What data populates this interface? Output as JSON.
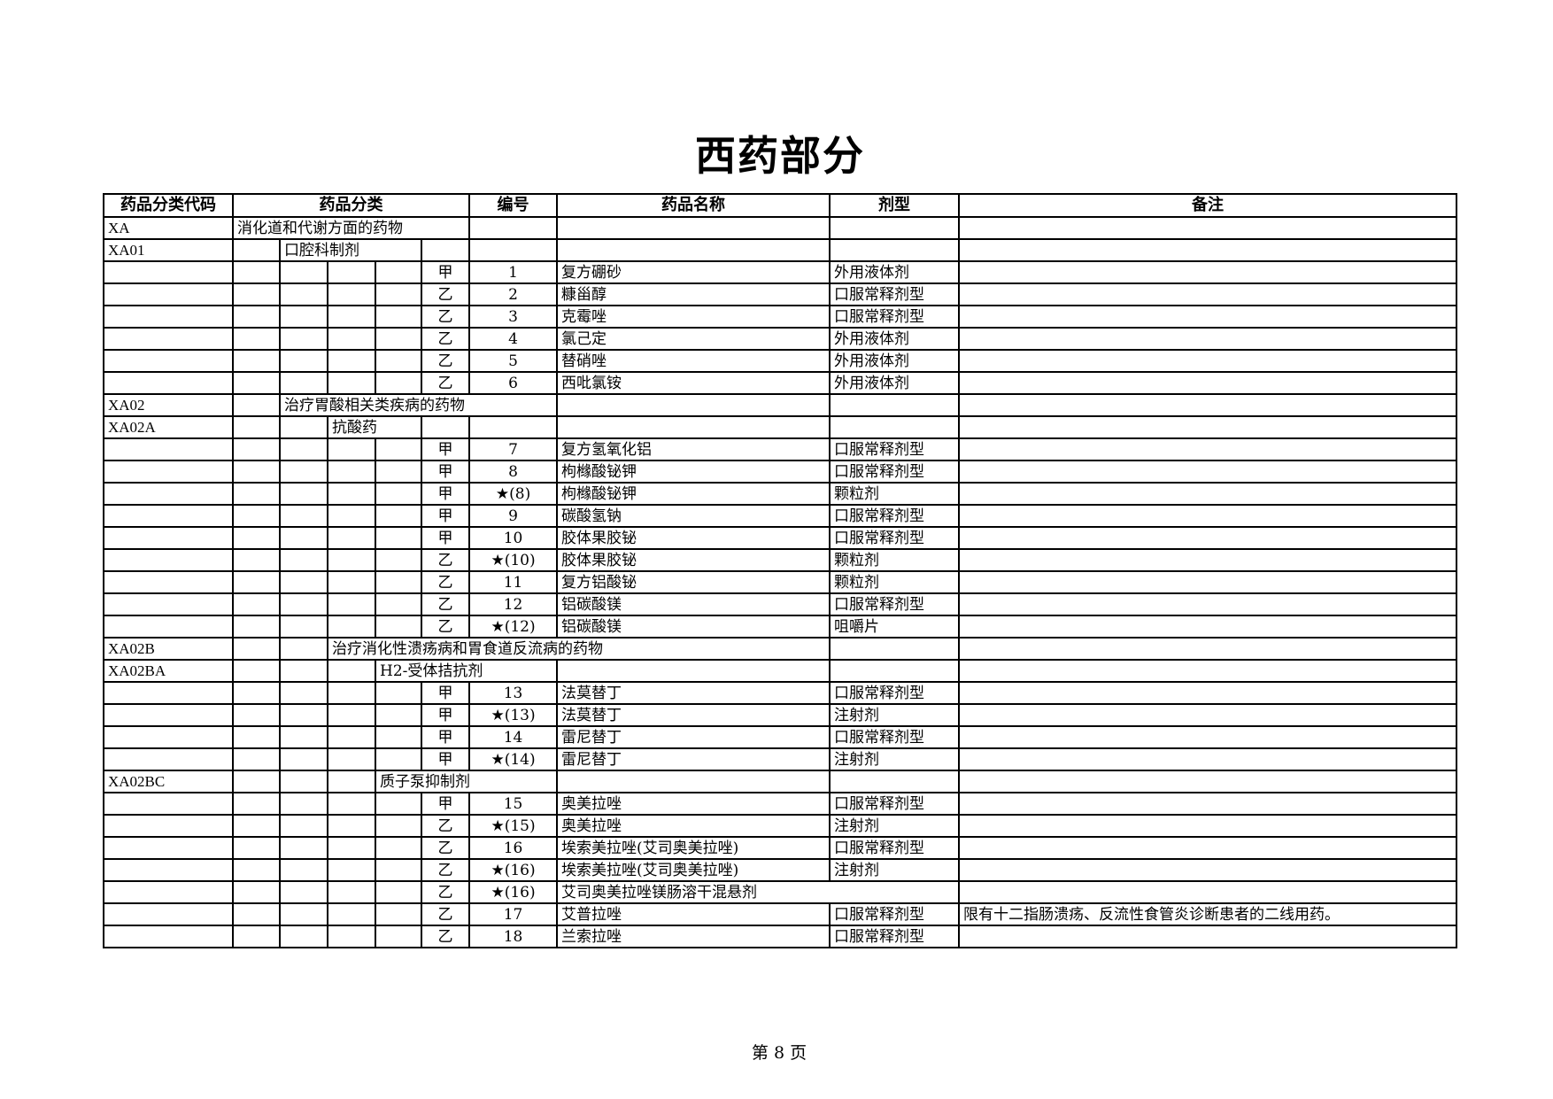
{
  "page_title": "西药部分",
  "headers": [
    "药品分类代码",
    "药品分类",
    "编号",
    "药品名称",
    "剂型",
    "备注"
  ],
  "rows": [
    {
      "type": "category",
      "code": "XA",
      "label": "消化道和代谢方面的药物"
    },
    {
      "type": "category",
      "code": "XA01",
      "label": "口腔科制剂"
    },
    {
      "type": "drug",
      "grade": "甲",
      "no": "1",
      "name": "复方硼砂",
      "form": "外用液体剂",
      "note": ""
    },
    {
      "type": "drug",
      "grade": "乙",
      "no": "2",
      "name": "糠甾醇",
      "form": "口服常释剂型",
      "note": ""
    },
    {
      "type": "drug",
      "grade": "乙",
      "no": "3",
      "name": "克霉唑",
      "form": "口服常释剂型",
      "note": ""
    },
    {
      "type": "drug",
      "grade": "乙",
      "no": "4",
      "name": "氯己定",
      "form": "外用液体剂",
      "note": ""
    },
    {
      "type": "drug",
      "grade": "乙",
      "no": "5",
      "name": "替硝唑",
      "form": "外用液体剂",
      "note": ""
    },
    {
      "type": "drug",
      "grade": "乙",
      "no": "6",
      "name": "西吡氯铵",
      "form": "外用液体剂",
      "note": ""
    },
    {
      "type": "category",
      "code": "XA02",
      "label": "治疗胃酸相关类疾病的药物"
    },
    {
      "type": "category",
      "code": "XA02A",
      "label": "抗酸药"
    },
    {
      "type": "drug",
      "grade": "甲",
      "no": "7",
      "name": "复方氢氧化铝",
      "form": "口服常释剂型",
      "note": ""
    },
    {
      "type": "drug",
      "grade": "甲",
      "no": "8",
      "name": "枸橼酸铋钾",
      "form": "口服常释剂型",
      "note": ""
    },
    {
      "type": "drug",
      "grade": "甲",
      "no": "★(8)",
      "name": "枸橼酸铋钾",
      "form": "颗粒剂",
      "note": ""
    },
    {
      "type": "drug",
      "grade": "甲",
      "no": "9",
      "name": "碳酸氢钠",
      "form": "口服常释剂型",
      "note": ""
    },
    {
      "type": "drug",
      "grade": "甲",
      "no": "10",
      "name": "胶体果胶铋",
      "form": "口服常释剂型",
      "note": ""
    },
    {
      "type": "drug",
      "grade": "乙",
      "no": "★(10)",
      "name": "胶体果胶铋",
      "form": "颗粒剂",
      "note": ""
    },
    {
      "type": "drug",
      "grade": "乙",
      "no": "11",
      "name": "复方铝酸铋",
      "form": "颗粒剂",
      "note": ""
    },
    {
      "type": "drug",
      "grade": "乙",
      "no": "12",
      "name": "铝碳酸镁",
      "form": "口服常释剂型",
      "note": ""
    },
    {
      "type": "drug",
      "grade": "乙",
      "no": "★(12)",
      "name": "铝碳酸镁",
      "form": "咀嚼片",
      "note": ""
    },
    {
      "type": "category",
      "code": "XA02B",
      "label": "治疗消化性溃疡病和胃食道反流病的药物"
    },
    {
      "type": "category",
      "code": "XA02BA",
      "label": "H2-受体拮抗剂"
    },
    {
      "type": "drug",
      "grade": "甲",
      "no": "13",
      "name": "法莫替丁",
      "form": "口服常释剂型",
      "note": ""
    },
    {
      "type": "drug",
      "grade": "甲",
      "no": "★(13)",
      "name": "法莫替丁",
      "form": "注射剂",
      "note": ""
    },
    {
      "type": "drug",
      "grade": "甲",
      "no": "14",
      "name": "雷尼替丁",
      "form": "口服常释剂型",
      "note": ""
    },
    {
      "type": "drug",
      "grade": "甲",
      "no": "★(14)",
      "name": "雷尼替丁",
      "form": "注射剂",
      "note": ""
    },
    {
      "type": "category",
      "code": "XA02BC",
      "label": "质子泵抑制剂"
    },
    {
      "type": "drug",
      "grade": "甲",
      "no": "15",
      "name": "奥美拉唑",
      "form": "口服常释剂型",
      "note": ""
    },
    {
      "type": "drug",
      "grade": "乙",
      "no": "★(15)",
      "name": "奥美拉唑",
      "form": "注射剂",
      "note": ""
    },
    {
      "type": "drug",
      "grade": "乙",
      "no": "16",
      "name": "埃索美拉唑(艾司奥美拉唑)",
      "form": "口服常释剂型",
      "note": ""
    },
    {
      "type": "drug",
      "grade": "乙",
      "no": "★(16)",
      "name": "埃索美拉唑(艾司奥美拉唑)",
      "form": "注射剂",
      "note": ""
    },
    {
      "type": "drug",
      "grade": "乙",
      "no": "★(16)",
      "name": "艾司奥美拉唑镁肠溶干混悬剂",
      "form": "",
      "note": ""
    },
    {
      "type": "drug",
      "grade": "乙",
      "no": "17",
      "name": "艾普拉唑",
      "form": "口服常释剂型",
      "note": "限有十二指肠溃疡、反流性食管炎诊断患者的二线用药。"
    },
    {
      "type": "drug",
      "grade": "乙",
      "no": "18",
      "name": "兰索拉唑",
      "form": "口服常释剂型",
      "note": ""
    }
  ],
  "footer": {
    "prefix": "第",
    "page": "8",
    "suffix": "页"
  }
}
